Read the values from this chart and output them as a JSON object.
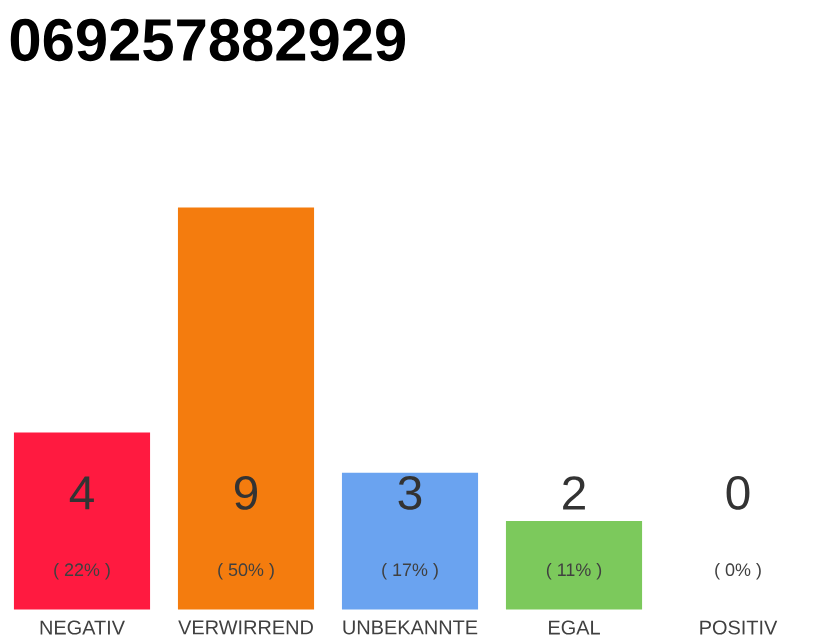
{
  "chart_data": {
    "type": "bar",
    "title": "069257882929",
    "categories": [
      "NEGATIV",
      "VERWIRREND",
      "UNBEKANNTE",
      "EGAL",
      "POSITIV"
    ],
    "values": [
      22,
      50,
      17,
      11,
      0
    ],
    "colors": [
      "#ff1a40",
      "#f47c0e",
      "#6aa3f0",
      "#7cc95c",
      "#dddddd"
    ],
    "value_labels": [
      "( 22% )",
      "( 50% )",
      "( 17% )",
      "( 11% )",
      "( 0% )"
    ],
    "annotations": [
      "4",
      "9",
      "3",
      "2",
      "0"
    ]
  }
}
